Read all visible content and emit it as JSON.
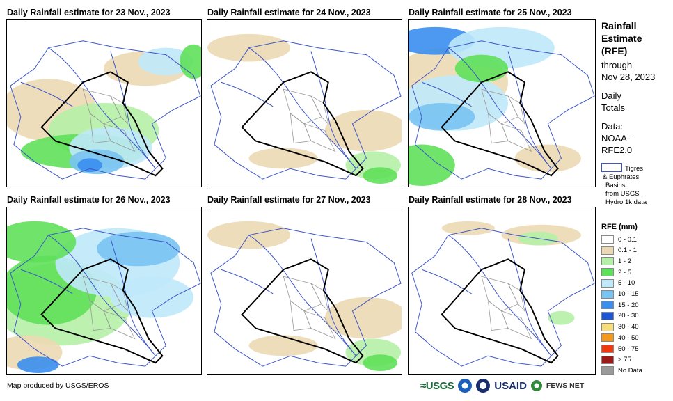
{
  "panels": [
    {
      "title": "Daily Rainfall estimate for 23 Nov., 2023",
      "intensity": "heavy-south"
    },
    {
      "title": "Daily Rainfall estimate for 24 Nov., 2023",
      "intensity": "light"
    },
    {
      "title": "Daily Rainfall estimate for 25 Nov., 2023",
      "intensity": "north"
    },
    {
      "title": "Daily Rainfall estimate for 26 Nov., 2023",
      "intensity": "heavy-west"
    },
    {
      "title": "Daily Rainfall estimate for 27 Nov., 2023",
      "intensity": "light"
    },
    {
      "title": "Daily Rainfall estimate for 28 Nov., 2023",
      "intensity": "very-light"
    }
  ],
  "sidebar": {
    "title_lines": [
      "Rainfall",
      "Estimate",
      "(RFE)"
    ],
    "through": "through",
    "date": "Nov 28, 2023",
    "daily": "Daily",
    "totals": "Totals",
    "data_label": "Data:",
    "data_source_1": "NOAA-",
    "data_source_2": "RFE2.0",
    "basin_line1": "Tigres",
    "basin_line2": "& Euphrates",
    "basin_line3": "Basins",
    "basin_line4": "from USGS",
    "basin_line5": "Hydro 1k data"
  },
  "legend": {
    "title": "RFE (mm)",
    "items": [
      {
        "label": "0 - 0.1",
        "color": "#ffffff"
      },
      {
        "label": "0.1 - 1",
        "color": "#ecd9b4"
      },
      {
        "label": "1 - 2",
        "color": "#b5f0a6"
      },
      {
        "label": "2 - 5",
        "color": "#5fe05a"
      },
      {
        "label": "5 - 10",
        "color": "#bfe9fb"
      },
      {
        "label": "10 - 15",
        "color": "#79c3f2"
      },
      {
        "label": "15 - 20",
        "color": "#3a8ef0"
      },
      {
        "label": "20 - 30",
        "color": "#1e56d6"
      },
      {
        "label": "30 - 40",
        "color": "#f7de7a"
      },
      {
        "label": "40 - 50",
        "color": "#f39a1c"
      },
      {
        "label": "50 - 75",
        "color": "#ee3a12"
      },
      {
        "label": "> 75",
        "color": "#9c1a1a"
      },
      {
        "label": "No Data",
        "color": "#9a9a9a"
      }
    ]
  },
  "footer": {
    "credit": "Map produced by USGS/EROS"
  },
  "logos": {
    "usgs": "≈USGS",
    "usaid": "USAID",
    "fews": "FEWS NET"
  }
}
